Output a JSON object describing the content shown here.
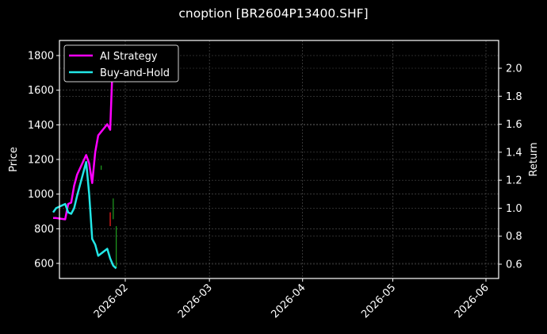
{
  "title": "cnoption [BR2604P13400.SHF]",
  "chart_data": {
    "type": "line",
    "title": "cnoption [BR2604P13400.SHF]",
    "xlabel": "",
    "ylabel": "Price",
    "ylabel_right": "Return",
    "x_ticks": [
      "2026-02",
      "2026-03",
      "2026-04",
      "2026-05",
      "2026-06"
    ],
    "y_ticks_left": [
      600,
      800,
      1000,
      1200,
      1400,
      1600,
      1800
    ],
    "y_ticks_right": [
      0.6,
      0.8,
      1.0,
      1.2,
      1.4,
      1.6,
      1.8,
      2.0
    ],
    "ylim_left": [
      510,
      1880
    ],
    "ylim_right": [
      0.49,
      2.2
    ],
    "grid": true,
    "legend_position": "upper left",
    "background": "#000000",
    "series": [
      {
        "name": "AI Strategy",
        "axis": "right",
        "color": "#ff00ff",
        "x": [
          "2026-01-08",
          "2026-01-09",
          "2026-01-12",
          "2026-01-13",
          "2026-01-14",
          "2026-01-15",
          "2026-01-16",
          "2026-01-19",
          "2026-01-20",
          "2026-01-21",
          "2026-01-22",
          "2026-01-23",
          "2026-01-26",
          "2026-01-27",
          "2026-01-28"
        ],
        "values": [
          0.93,
          0.93,
          0.92,
          1.03,
          1.04,
          1.16,
          1.24,
          1.38,
          1.32,
          1.18,
          1.4,
          1.52,
          1.6,
          1.56,
          2.14
        ]
      },
      {
        "name": "Buy-and-Hold",
        "axis": "right",
        "color": "#22e6e6",
        "x": [
          "2026-01-08",
          "2026-01-09",
          "2026-01-12",
          "2026-01-13",
          "2026-01-14",
          "2026-01-15",
          "2026-01-16",
          "2026-01-19",
          "2026-01-20",
          "2026-01-21",
          "2026-01-22",
          "2026-01-23",
          "2026-01-26",
          "2026-01-27",
          "2026-01-28",
          "2026-01-29"
        ],
        "values": [
          0.97,
          1.0,
          1.03,
          0.97,
          0.96,
          1.0,
          1.09,
          1.33,
          1.1,
          0.78,
          0.74,
          0.66,
          0.71,
          0.64,
          0.59,
          0.57
        ]
      }
    ],
    "candles": [
      {
        "x": "2026-01-27",
        "low": 815,
        "high": 895,
        "color": "#ff2020"
      },
      {
        "x": "2026-01-28",
        "low": 855,
        "high": 975,
        "color": "#20a020"
      },
      {
        "x": "2026-01-29",
        "low": 575,
        "high": 815,
        "color": "#20a020"
      },
      {
        "x": "2026-01-24",
        "low": 1140,
        "high": 1165,
        "color": "#20a020"
      }
    ]
  },
  "legend": {
    "items": [
      {
        "label": "AI Strategy",
        "color": "#ff00ff"
      },
      {
        "label": "Buy-and-Hold",
        "color": "#22e6e6"
      }
    ]
  },
  "axes": {
    "ylabel_left": "Price",
    "ylabel_right": "Return",
    "left_ticks": [
      "1800",
      "1600",
      "1400",
      "1200",
      "1000",
      "800",
      "600"
    ],
    "right_ticks": [
      "2.0",
      "1.8",
      "1.6",
      "1.4",
      "1.2",
      "1.0",
      "0.8",
      "0.6"
    ],
    "x_ticks": [
      "2026-02",
      "2026-03",
      "2026-04",
      "2026-05",
      "2026-06"
    ]
  }
}
